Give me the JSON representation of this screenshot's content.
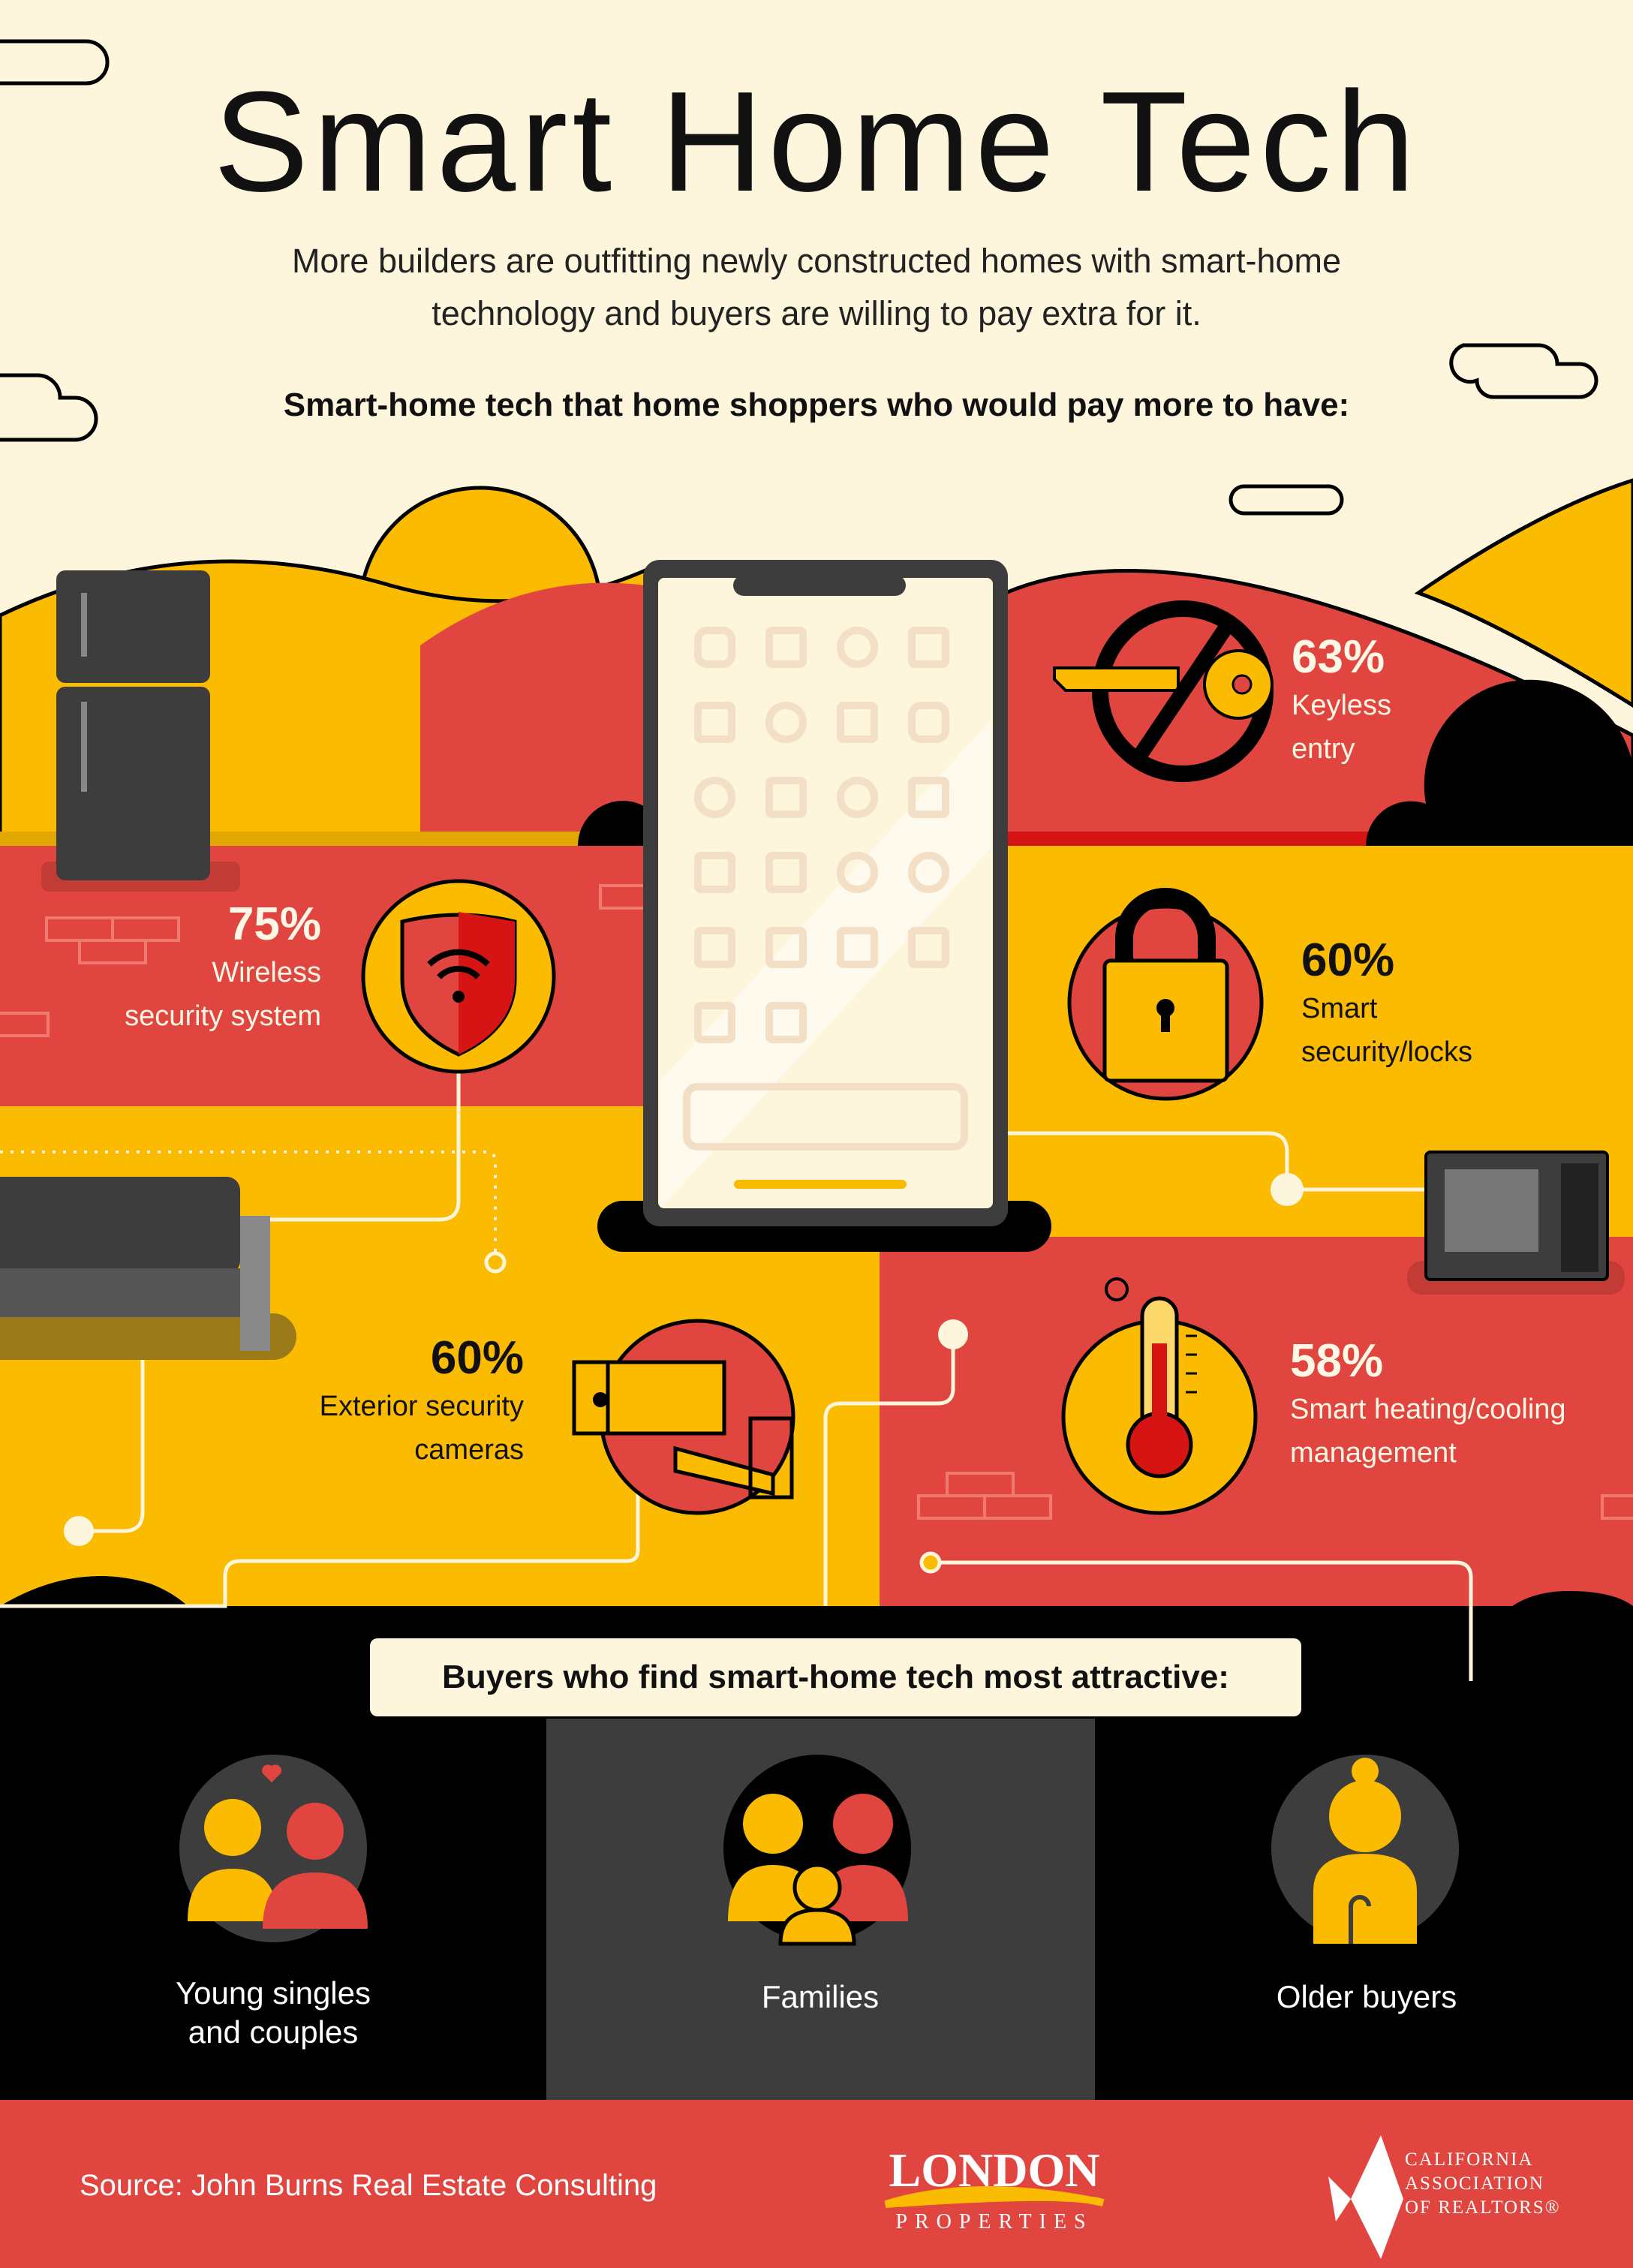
{
  "header": {
    "title": "Smart Home Tech",
    "subtitle_line1": "More builders are outfitting newly constructed homes with smart-home",
    "subtitle_line2": "technology and buyers are willing to pay extra for it.",
    "section_heading": "Smart-home tech that home shoppers who would pay more to have:"
  },
  "stats": [
    {
      "percent": "63%",
      "label_line1": "Keyless",
      "label_line2": "entry",
      "icon": "no-key-icon"
    },
    {
      "percent": "75%",
      "label_line1": "Wireless",
      "label_line2": "security system",
      "icon": "wifi-shield-icon"
    },
    {
      "percent": "60%",
      "label_line1": "Smart",
      "label_line2": "security/locks",
      "icon": "padlock-icon"
    },
    {
      "percent": "60%",
      "label_line1": "Exterior security",
      "label_line2": "cameras",
      "icon": "security-camera-icon"
    },
    {
      "percent": "58%",
      "label_line1": "Smart heating/cooling",
      "label_line2": "management",
      "icon": "thermometer-icon"
    }
  ],
  "buyers": {
    "heading": "Buyers who find smart-home tech most attractive:",
    "groups": [
      {
        "label": "Young singles and couples",
        "icon": "couple-icon"
      },
      {
        "label": "Families",
        "icon": "family-icon"
      },
      {
        "label": "Older buyers",
        "icon": "older-person-icon"
      }
    ]
  },
  "footer": {
    "source": "Source: John Burns Real Estate Consulting",
    "logo1_text": "LONDON",
    "logo1_sub": "PROPERTIES",
    "logo2_lines": [
      "CALIFORNIA",
      "ASSOCIATION",
      "OF REALTORS®"
    ]
  },
  "colors": {
    "cream": "#fdf6dc",
    "yellow": "#fbbb00",
    "red": "#e0453f",
    "black": "#000000",
    "dark_gray": "#3d3d3d"
  }
}
